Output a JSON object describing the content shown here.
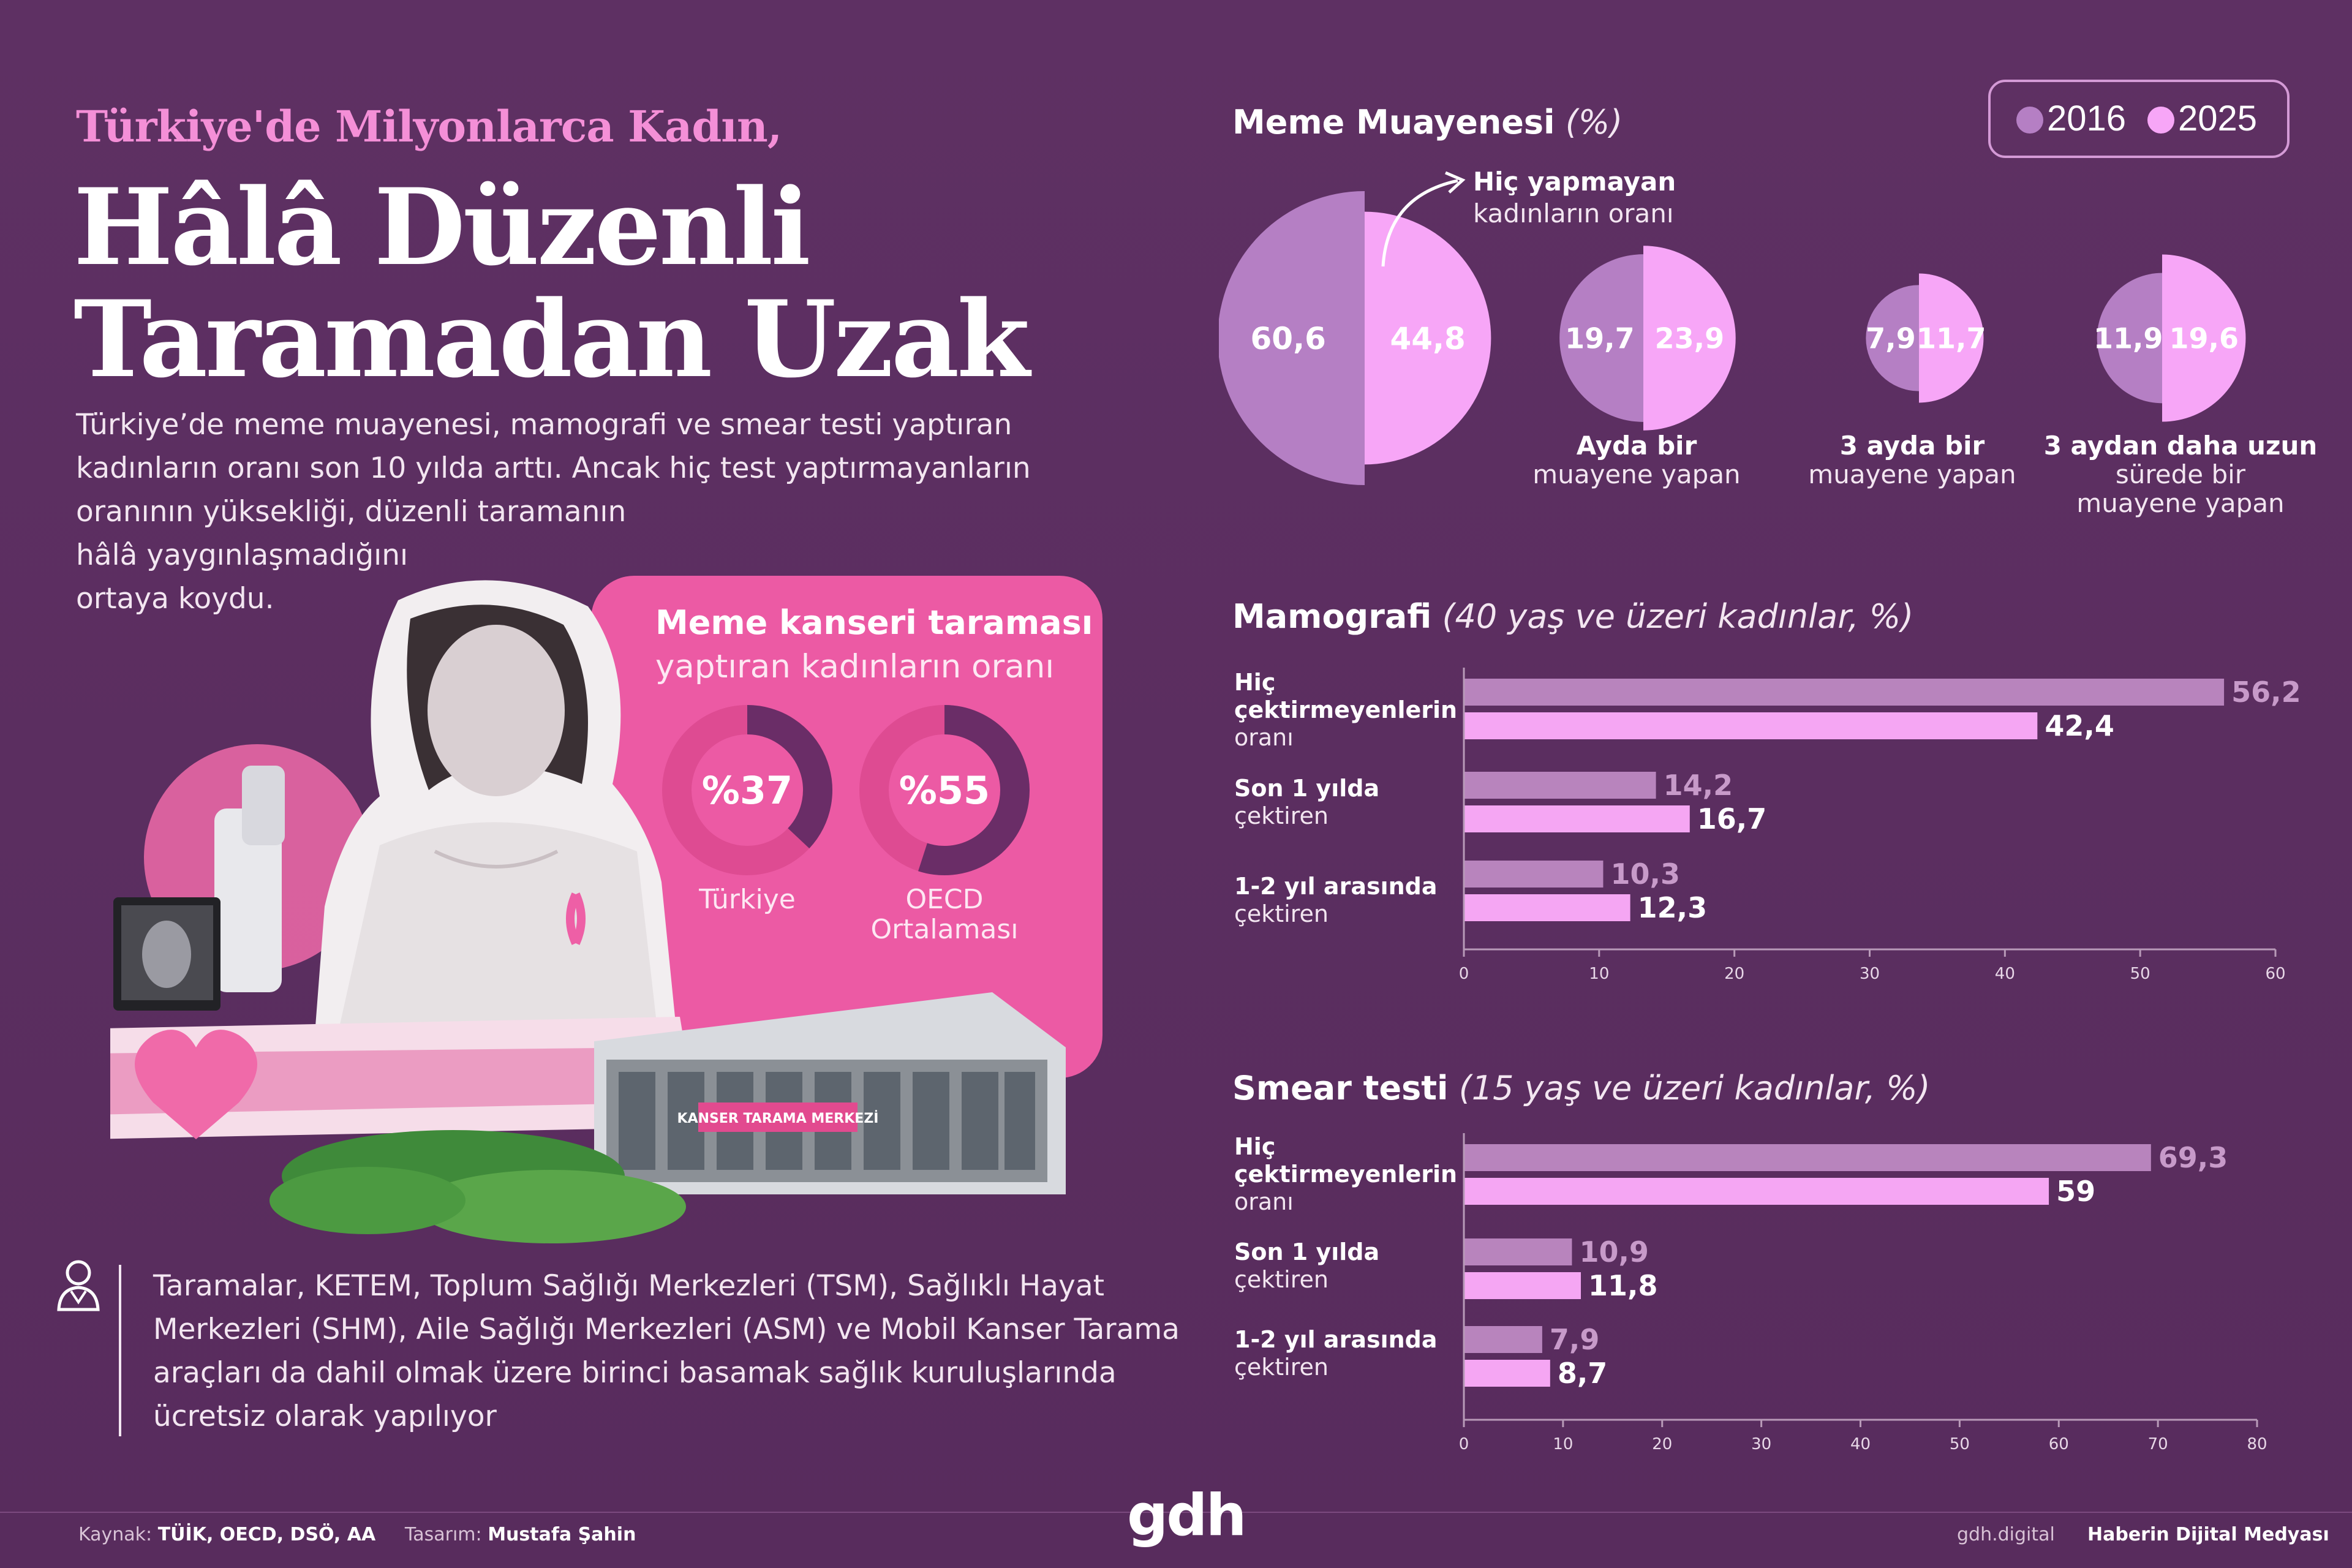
{
  "header": {
    "kicker": "Türkiye'de Milyonlarca Kadın,",
    "title_line1": "Hâlâ Düzenli",
    "title_line2": "Taramadan Uzak",
    "intro_lines": [
      "Türkiye’de meme muayenesi, mamografi ve smear testi yaptıran",
      "kadınların oranı son 10 yılda arttı. Ancak hiç test yaptırmayanların",
      "oranının yüksekliği, düzenli taramanın",
      "hâlâ yaygınlaşmadığını",
      "ortaya koydu."
    ]
  },
  "promo": {
    "title_bold": "Meme kanseri taraması",
    "title_light": "yaptıran kadınların oranı",
    "building_sign": "KANSER TARAMA MERKEZİ"
  },
  "info": {
    "lines": [
      "Taramalar, KETEM, Toplum Sağlığı Merkezleri (TSM), Sağlıklı Hayat",
      "Merkezleri (SHM), Aile Sağlığı Merkezleri (ASM) ve Mobil Kanser Tarama",
      "araçları da dahil olmak üzere birinci basamak sağlık kuruluşlarında",
      "ücretsiz olarak yapılıyor"
    ]
  },
  "legend": {
    "items": [
      {
        "label": "2016",
        "color": "#b57fc4"
      },
      {
        "label": "2025",
        "color": "#f7a6f7"
      }
    ]
  },
  "colors": {
    "c2016": "#b57fc4",
    "c2025": "#f7a6f7",
    "bar2016": "#b884bd",
    "bar2025": "#f5a6f3",
    "label2016": "#c79ac9",
    "promo_bg": "#ec5aa4"
  },
  "footer": {
    "source_label": "Kaynak:",
    "source_value": "TÜİK, OECD, DSÖ, AA",
    "design_label": "Tasarım:",
    "design_value": "Mustafa Şahin",
    "logo": "gdh",
    "site": "gdh.digital",
    "tagline": "Haberin Dijital Medyası"
  },
  "chart_data": [
    {
      "type": "pie",
      "title": "Meme Muayenesi",
      "title_unit": "(%)",
      "series_names": [
        "2016",
        "2025"
      ],
      "annotation_bold": "Hiç yapmayan",
      "annotation_light": "kadınların oranı",
      "groups": [
        {
          "label_bold": "",
          "label_light": [],
          "values": [
            60.6,
            44.8
          ],
          "value_labels": [
            "60,6",
            "44,8"
          ]
        },
        {
          "label_bold": "Ayda bir",
          "label_light": [
            "muayene yapan"
          ],
          "values": [
            19.7,
            23.9
          ],
          "value_labels": [
            "19,7",
            "23,9"
          ]
        },
        {
          "label_bold": "3 ayda bir",
          "label_light": [
            "muayene yapan"
          ],
          "values": [
            7.9,
            11.7
          ],
          "value_labels": [
            "7,9",
            "11,7"
          ]
        },
        {
          "label_bold": "3 aydan daha uzun",
          "label_light": [
            "sürede bir",
            "muayene yapan"
          ],
          "values": [
            11.9,
            19.6
          ],
          "value_labels": [
            "11,9",
            "19,6"
          ]
        }
      ]
    },
    {
      "type": "bar",
      "orientation": "horizontal",
      "title": "Mamografi",
      "title_note": "(40 yaş ve üzeri kadınlar, %)",
      "categories": [
        {
          "bold": [
            "Hiç",
            "çektirmeyenlerin"
          ],
          "light": [
            "oranı"
          ]
        },
        {
          "bold": [
            "Son 1 yılda"
          ],
          "light": [
            "çektiren"
          ]
        },
        {
          "bold": [
            "1-2 yıl arasında"
          ],
          "light": [
            "çektiren"
          ]
        }
      ],
      "series": [
        {
          "name": "2016",
          "values": [
            56.2,
            14.2,
            10.3
          ],
          "value_labels": [
            "56,2",
            "14,2",
            "10,3"
          ]
        },
        {
          "name": "2025",
          "values": [
            42.4,
            16.7,
            12.3
          ],
          "value_labels": [
            "42,4",
            "16,7",
            "12,3"
          ]
        }
      ],
      "xlim": [
        0,
        60
      ],
      "xticks": [
        "0",
        "10",
        "20",
        "30",
        "40",
        "50",
        "60"
      ]
    },
    {
      "type": "bar",
      "orientation": "horizontal",
      "title": "Smear testi",
      "title_note": "(15 yaş ve üzeri kadınlar, %)",
      "categories": [
        {
          "bold": [
            "Hiç",
            "çektirmeyenlerin"
          ],
          "light": [
            "oranı"
          ]
        },
        {
          "bold": [
            "Son 1 yılda"
          ],
          "light": [
            "çektiren"
          ]
        },
        {
          "bold": [
            "1-2 yıl arasında"
          ],
          "light": [
            "çektiren"
          ]
        }
      ],
      "series": [
        {
          "name": "2016",
          "values": [
            69.3,
            10.9,
            7.9
          ],
          "value_labels": [
            "69,3",
            "10,9",
            "7,9"
          ]
        },
        {
          "name": "2025",
          "values": [
            59,
            11.8,
            8.7
          ],
          "value_labels": [
            "59",
            "11,8",
            "8,7"
          ]
        }
      ],
      "xlim": [
        0,
        80
      ],
      "xticks": [
        "0",
        "10",
        "20",
        "30",
        "40",
        "50",
        "60",
        "70",
        "80"
      ]
    },
    {
      "type": "pie",
      "title": "Meme kanseri taraması yaptıran kadınların oranı",
      "series": [
        {
          "name": "Türkiye",
          "value": 37,
          "value_label": "%37"
        },
        {
          "name": "OECD Ortalaması",
          "value": 55,
          "value_label": "%55",
          "name_lines": [
            "OECD",
            "Ortalaması"
          ]
        }
      ]
    }
  ]
}
